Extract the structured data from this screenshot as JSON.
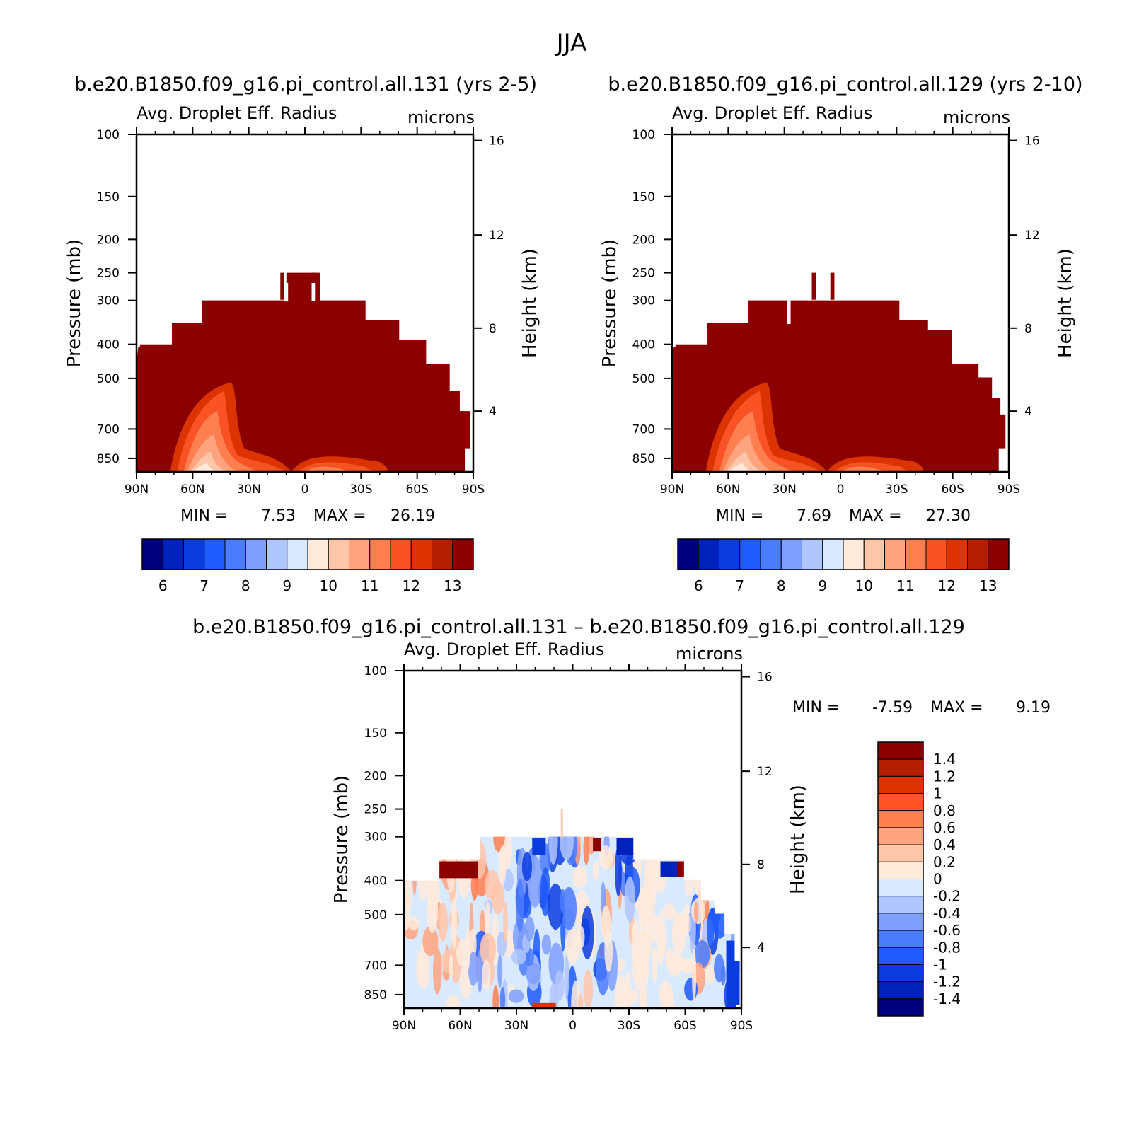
{
  "figure_title": "JJA",
  "chart_data": [
    {
      "type": "heatmap",
      "id": "case",
      "run_title": "b.e20.B1850.f09_g16.pi_control.all.131 (yrs 2-5)",
      "field": "Avg. Droplet Eff. Radius",
      "units": "microns",
      "ylabel": "Pressure (mb)",
      "y2label": "Height (km)",
      "x_ticks": [
        "90N",
        "60N",
        "30N",
        "0",
        "30S",
        "60S",
        "90S"
      ],
      "y_ticks": [
        "100",
        "150",
        "200",
        "250",
        "300",
        "400",
        "500",
        "700",
        "850"
      ],
      "y2_ticks": [
        "16",
        "12",
        "8",
        "4"
      ],
      "min_label": "MIN =",
      "min_value": "7.53",
      "max_label": "MAX =",
      "max_value": "26.19",
      "colorbar_labels": [
        "6",
        "7",
        "8",
        "9",
        "10",
        "11",
        "12",
        "13"
      ],
      "colorbar_colors": [
        "#00007f",
        "#0022bb",
        "#0a3ce0",
        "#1f5bff",
        "#4b7bff",
        "#7f9fff",
        "#b0c6ff",
        "#d9eaff",
        "#ffeadb",
        "#ffc7aa",
        "#ffa47f",
        "#ff7f50",
        "#f95224",
        "#dd3300",
        "#b51e00",
        "#8b0000"
      ]
    },
    {
      "type": "heatmap",
      "id": "control",
      "run_title": "b.e20.B1850.f09_g16.pi_control.all.129 (yrs 2-10)",
      "field": "Avg. Droplet Eff. Radius",
      "units": "microns",
      "ylabel": "Pressure (mb)",
      "y2label": "Height (km)",
      "x_ticks": [
        "90N",
        "60N",
        "30N",
        "0",
        "30S",
        "60S",
        "90S"
      ],
      "y_ticks": [
        "100",
        "150",
        "200",
        "250",
        "300",
        "400",
        "500",
        "700",
        "850"
      ],
      "y2_ticks": [
        "16",
        "12",
        "8",
        "4"
      ],
      "min_label": "MIN =",
      "min_value": "7.69",
      "max_label": "MAX =",
      "max_value": "27.30",
      "colorbar_labels": [
        "6",
        "7",
        "8",
        "9",
        "10",
        "11",
        "12",
        "13"
      ],
      "colorbar_colors": [
        "#00007f",
        "#0022bb",
        "#0a3ce0",
        "#1f5bff",
        "#4b7bff",
        "#7f9fff",
        "#b0c6ff",
        "#d9eaff",
        "#ffeadb",
        "#ffc7aa",
        "#ffa47f",
        "#ff7f50",
        "#f95224",
        "#dd3300",
        "#b51e00",
        "#8b0000"
      ]
    },
    {
      "type": "heatmap",
      "id": "difference",
      "run_title": "b.e20.B1850.f09_g16.pi_control.all.131 – b.e20.B1850.f09_g16.pi_control.all.129",
      "field": "Avg. Droplet Eff. Radius",
      "units": "microns",
      "ylabel": "Pressure (mb)",
      "y2label": "Height (km)",
      "x_ticks": [
        "90N",
        "60N",
        "30N",
        "0",
        "30S",
        "60S",
        "90S"
      ],
      "y_ticks": [
        "100",
        "150",
        "200",
        "250",
        "300",
        "400",
        "500",
        "700",
        "850"
      ],
      "y2_ticks": [
        "16",
        "12",
        "8",
        "4"
      ],
      "min_label": "MIN =",
      "min_value": "-7.59",
      "max_label": "MAX =",
      "max_value": "9.19",
      "colorbar_labels": [
        "1.4",
        "1.2",
        "1",
        "0.8",
        "0.6",
        "0.4",
        "0.2",
        "0",
        "-0.2",
        "-0.4",
        "-0.6",
        "-0.8",
        "-1",
        "-1.2",
        "-1.4"
      ],
      "colorbar_colors": [
        "#8b0000",
        "#b51e00",
        "#dd3300",
        "#ff5522",
        "#ff7f50",
        "#ffa47f",
        "#ffc7aa",
        "#ffeadb",
        "#d9eaff",
        "#b0c6ff",
        "#7f9fff",
        "#4b7bff",
        "#1f5bff",
        "#0a3ce0",
        "#0022bb",
        "#00007f"
      ]
    }
  ]
}
